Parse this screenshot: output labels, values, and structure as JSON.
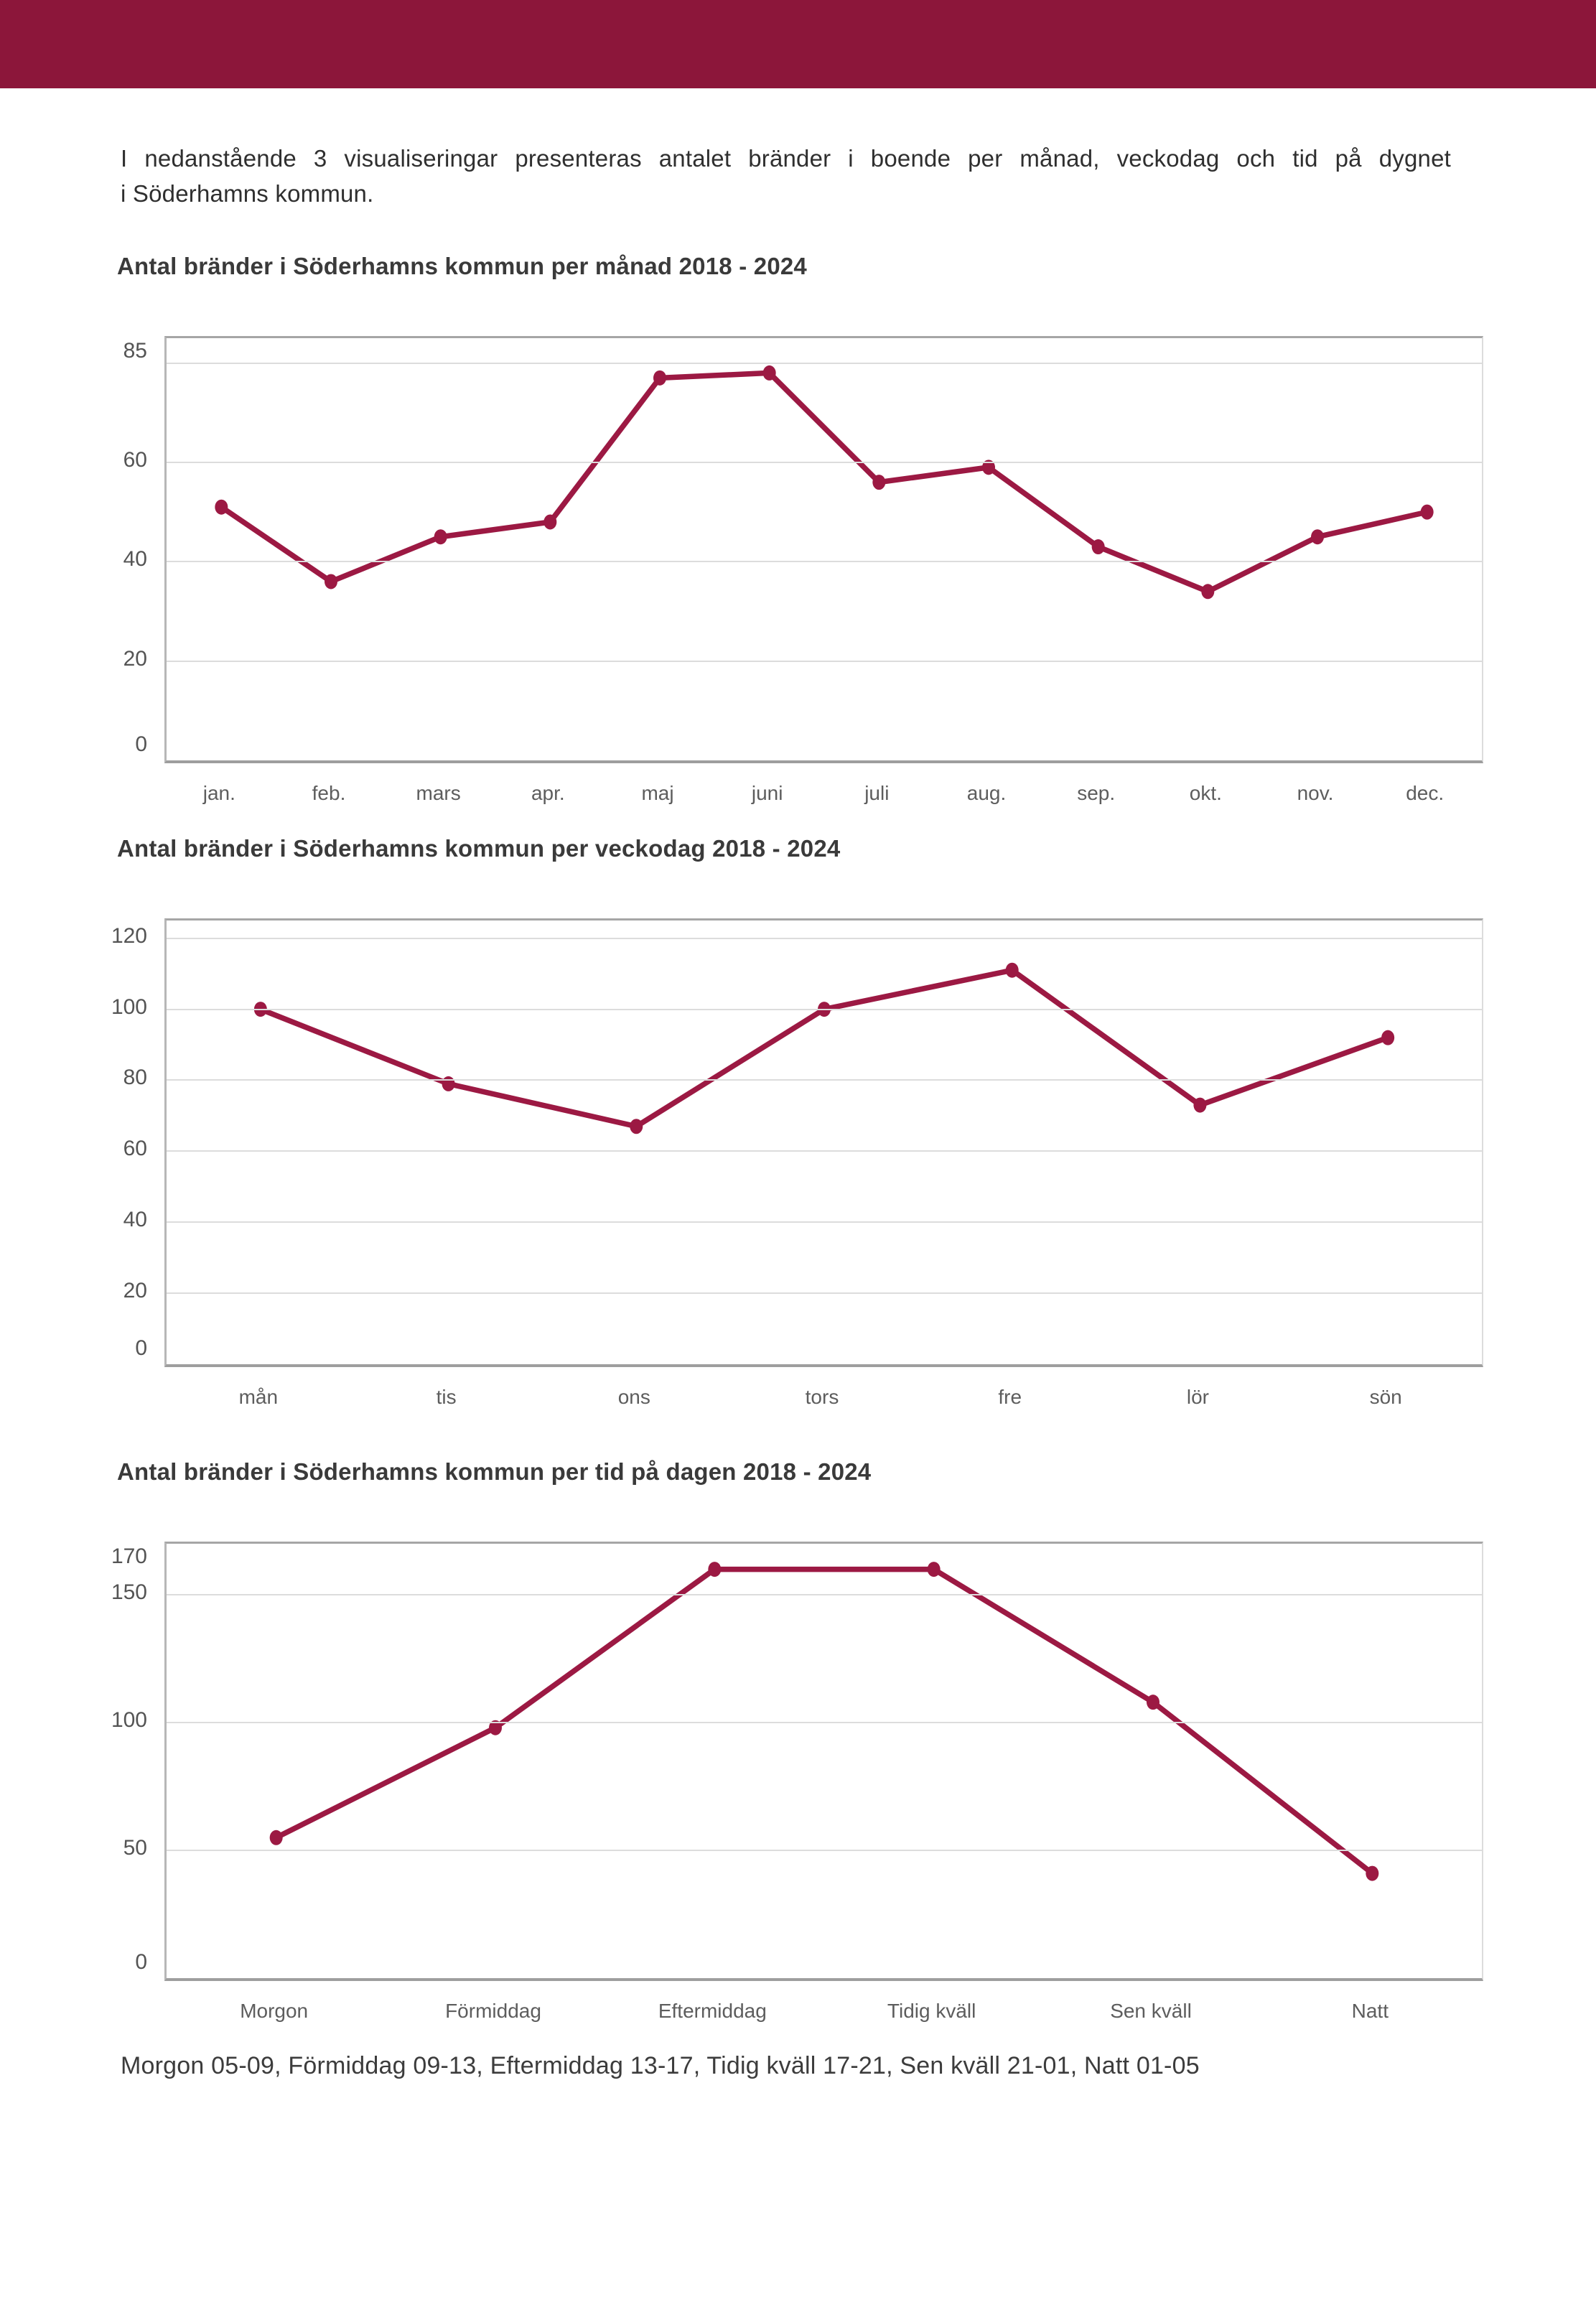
{
  "page": {
    "background": "#ffffff",
    "header_color": "#8C163A",
    "accent_line_color": "#9C1943",
    "grid_color": "#dcdcdc"
  },
  "intro": {
    "line1": "I nedanstående 3 visualiseringar presenteras antalet bränder i boende per månad, veckodag och tid på dygnet",
    "line2": "i Söderhamns kommun."
  },
  "chart_data": [
    {
      "type": "line",
      "title": "Antal bränder i Söderhamns kommun per månad 2018 - 2024",
      "categories": [
        "jan.",
        "feb.",
        "mars",
        "apr.",
        "maj",
        "juni",
        "juli",
        "aug.",
        "sep.",
        "okt.",
        "nov.",
        "dec."
      ],
      "values": [
        51,
        36,
        45,
        48,
        77,
        78,
        56,
        59,
        43,
        34,
        45,
        50
      ],
      "xlabel": "",
      "ylabel": "",
      "ylim": [
        0,
        85
      ],
      "yticks": [
        0,
        20,
        40,
        60,
        85
      ],
      "gridlines": [
        20,
        40,
        60,
        80
      ],
      "grid": true,
      "legend": "none",
      "line_color": "#9C1943"
    },
    {
      "type": "line",
      "title": "Antal bränder i Söderhamns kommun per veckodag 2018 - 2024",
      "categories": [
        "mån",
        "tis",
        "ons",
        "tors",
        "fre",
        "lör",
        "sön"
      ],
      "values": [
        100,
        79,
        67,
        100,
        111,
        73,
        92
      ],
      "xlabel": "",
      "ylabel": "",
      "ylim": [
        0,
        125
      ],
      "yticks": [
        0,
        20,
        40,
        60,
        80,
        100,
        120
      ],
      "gridlines": [
        20,
        40,
        60,
        80,
        100,
        120
      ],
      "grid": true,
      "legend": "none",
      "line_color": "#9C1943"
    },
    {
      "type": "line",
      "title": "Antal bränder i Söderhamns kommun per tid på dagen 2018 - 2024",
      "categories": [
        "Morgon",
        "Förmiddag",
        "Eftermiddag",
        "Tidig kväll",
        "Sen kväll",
        "Natt"
      ],
      "values": [
        55,
        98,
        160,
        160,
        108,
        41
      ],
      "xlabel": "",
      "ylabel": "",
      "ylim": [
        0,
        170
      ],
      "yticks": [
        0,
        50,
        100,
        150,
        170
      ],
      "gridlines": [
        50,
        100,
        150
      ],
      "grid": true,
      "legend": "none",
      "line_color": "#9C1943"
    }
  ],
  "footer": {
    "text": "Morgon 05-09, Förmiddag 09-13, Eftermiddag 13-17, Tidig kväll 17-21, Sen kväll 21-01, Natt 01-05"
  }
}
